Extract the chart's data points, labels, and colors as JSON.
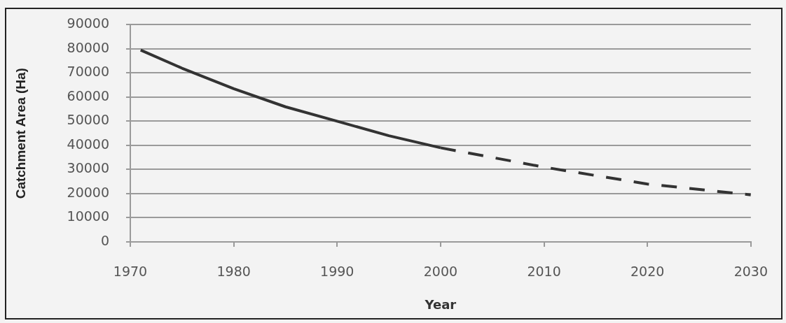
{
  "chart_data": {
    "type": "line",
    "xlabel": "Year",
    "ylabel": "Catchment Area (Ha)",
    "series": [
      {
        "color": "#333333",
        "line_style": "solid",
        "x": [
          1971,
          1975,
          1980,
          1985,
          1990,
          1995,
          2000
        ],
        "values": [
          79500,
          72000,
          63500,
          56000,
          50000,
          44000,
          39000
        ]
      },
      {
        "color": "#333333",
        "line_style": "dashed",
        "x": [
          2000,
          2010,
          2020,
          2030
        ],
        "values": [
          39000,
          31000,
          24000,
          19500
        ]
      }
    ],
    "xlim": [
      1970,
      2030
    ],
    "xticks": [
      1970,
      1980,
      1990,
      2000,
      2010,
      2020,
      2030
    ],
    "ylim": [
      0,
      90000
    ],
    "yticks": [
      0,
      10000,
      20000,
      30000,
      40000,
      50000,
      60000,
      70000,
      80000,
      90000
    ],
    "grid": "y"
  }
}
